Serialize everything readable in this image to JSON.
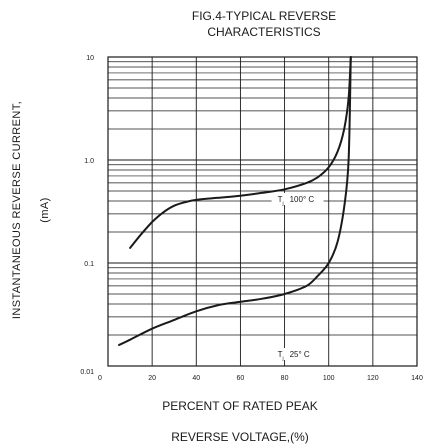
{
  "chart_data": {
    "type": "line",
    "title": [
      "FIG.4-TYPICAL REVERSE",
      "CHARACTERISTICS"
    ],
    "xlabel": [
      "PERCENT OF RATED PEAK",
      "REVERSE VOLTAGE,(%)"
    ],
    "ylabel": "INSTANTANEOUS REVERSE CURRENT,",
    "ylabel_unit": "(mA)",
    "x_scale": "linear",
    "y_scale": "log",
    "xlim": [
      0,
      140
    ],
    "ylim": [
      0.01,
      10
    ],
    "x_ticks": [
      0,
      20,
      40,
      60,
      80,
      100,
      120,
      140
    ],
    "x_tick_labels": [
      "0",
      "20",
      "40",
      "60",
      "80",
      "100",
      "120",
      "140"
    ],
    "y_ticks": [
      0.01,
      0.1,
      1.0,
      10
    ],
    "y_tick_labels": [
      "0.01",
      "0.1",
      "1.0",
      "10"
    ],
    "grid": true,
    "series": [
      {
        "name": "Tj 100° C",
        "label_main": "T",
        "label_sub": "j",
        "label_rest": "100° C",
        "points": [
          [
            10,
            0.14
          ],
          [
            15,
            0.19
          ],
          [
            20,
            0.25
          ],
          [
            25,
            0.31
          ],
          [
            30,
            0.36
          ],
          [
            35,
            0.39
          ],
          [
            40,
            0.41
          ],
          [
            50,
            0.43
          ],
          [
            60,
            0.45
          ],
          [
            70,
            0.48
          ],
          [
            80,
            0.52
          ],
          [
            90,
            0.6
          ],
          [
            95,
            0.68
          ],
          [
            100,
            0.85
          ],
          [
            104,
            1.2
          ],
          [
            107,
            2.0
          ],
          [
            109,
            4.0
          ],
          [
            110,
            10
          ]
        ]
      },
      {
        "name": "Tj 25° C",
        "label_main": "T",
        "label_sub": "j",
        "label_rest": "25° C",
        "points": [
          [
            5,
            0.016
          ],
          [
            10,
            0.018
          ],
          [
            20,
            0.023
          ],
          [
            30,
            0.028
          ],
          [
            40,
            0.034
          ],
          [
            50,
            0.039
          ],
          [
            60,
            0.042
          ],
          [
            70,
            0.045
          ],
          [
            80,
            0.05
          ],
          [
            90,
            0.06
          ],
          [
            95,
            0.075
          ],
          [
            100,
            0.1
          ],
          [
            104,
            0.16
          ],
          [
            107,
            0.35
          ],
          [
            109,
            1.0
          ],
          [
            110,
            10
          ]
        ]
      }
    ]
  }
}
